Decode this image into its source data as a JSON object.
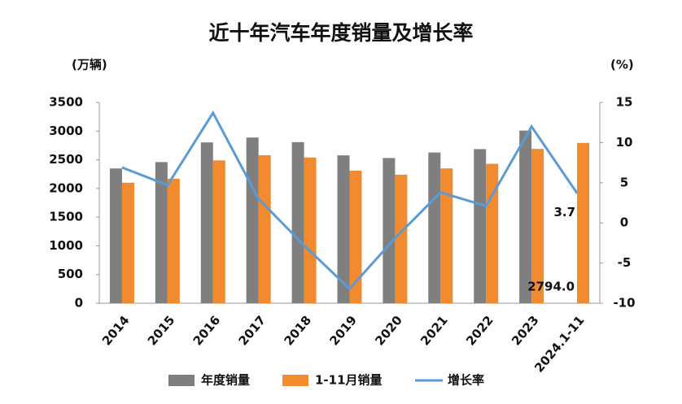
{
  "chart_data": {
    "type": "bar",
    "title": "近十年汽车年度销量及增长率",
    "y_label": "(万辆)",
    "y2_label": "(%)",
    "categories": [
      "2014",
      "2015",
      "2016",
      "2017",
      "2018",
      "2019",
      "2020",
      "2021",
      "2022",
      "2023",
      "2024.1-11"
    ],
    "series": [
      {
        "name": "年度销量",
        "color": "#7f7f7f",
        "type": "bar",
        "values": [
          2349,
          2460,
          2803,
          2888,
          2808,
          2577,
          2531,
          2627,
          2686,
          3009,
          null
        ]
      },
      {
        "name": "1-11月销量",
        "color": "#f28a30",
        "type": "bar",
        "values": [
          2100,
          2170,
          2490,
          2580,
          2540,
          2310,
          2240,
          2350,
          2430,
          2690,
          2794
        ],
        "value_labels": [
          null,
          null,
          null,
          null,
          null,
          null,
          null,
          null,
          null,
          null,
          "2794.0"
        ]
      },
      {
        "name": "增长率",
        "color": "#5b9bd5",
        "type": "line",
        "axis": "y2",
        "values": [
          6.9,
          4.7,
          13.7,
          3.0,
          -2.8,
          -8.2,
          -1.9,
          3.8,
          2.1,
          12.0,
          3.7
        ],
        "labeled": [
          10
        ]
      }
    ],
    "ylim": [
      0,
      3500
    ],
    "yticks": [
      0,
      500,
      1000,
      1500,
      2000,
      2500,
      3000,
      3500
    ],
    "y2lim": [
      -10,
      15
    ],
    "y2ticks": [
      -10,
      -5,
      0,
      5,
      10,
      15
    ]
  }
}
